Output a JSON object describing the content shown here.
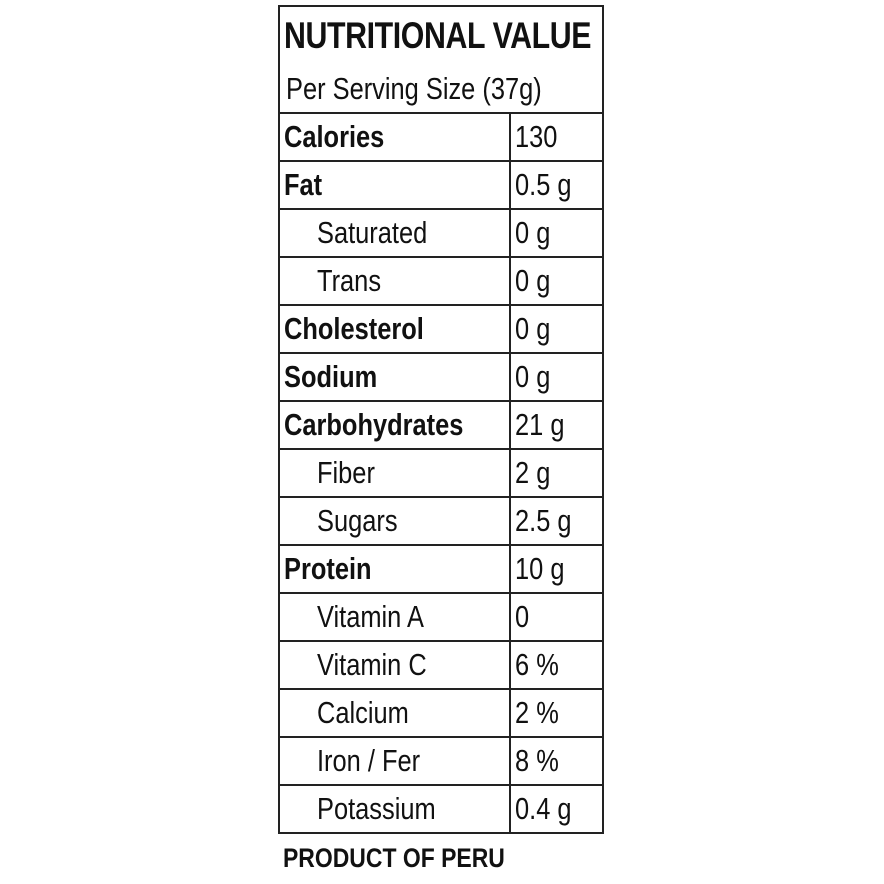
{
  "title": "NUTRITIONAL VALUE",
  "serving": "Per Serving Size (37g)",
  "rows": [
    {
      "label": "Calories",
      "value": "130",
      "bold": true
    },
    {
      "label": "Fat",
      "value": "0.5 g",
      "bold": true
    },
    {
      "label": "Saturated",
      "value": "0 g",
      "bold": false
    },
    {
      "label": "Trans",
      "value": "0 g",
      "bold": false
    },
    {
      "label": "Cholesterol",
      "value": "0 g",
      "bold": true
    },
    {
      "label": "Sodium",
      "value": "0 g",
      "bold": true
    },
    {
      "label": "Carbohydrates",
      "value": "21 g",
      "bold": true
    },
    {
      "label": "Fiber",
      "value": "2 g",
      "bold": false
    },
    {
      "label": "Sugars",
      "value": "2.5 g",
      "bold": false
    },
    {
      "label": "Protein",
      "value": "10 g",
      "bold": true
    },
    {
      "label": "Vitamin A",
      "value": "0",
      "bold": false
    },
    {
      "label": "Vitamin C",
      "value": "6 %",
      "bold": false
    },
    {
      "label": "Calcium",
      "value": "2 %",
      "bold": false
    },
    {
      "label": "Iron / Fer",
      "value": "8 %",
      "bold": false
    },
    {
      "label": "Potassium",
      "value": "0.4 g",
      "bold": false
    }
  ],
  "footer": "PRODUCT OF PERU"
}
